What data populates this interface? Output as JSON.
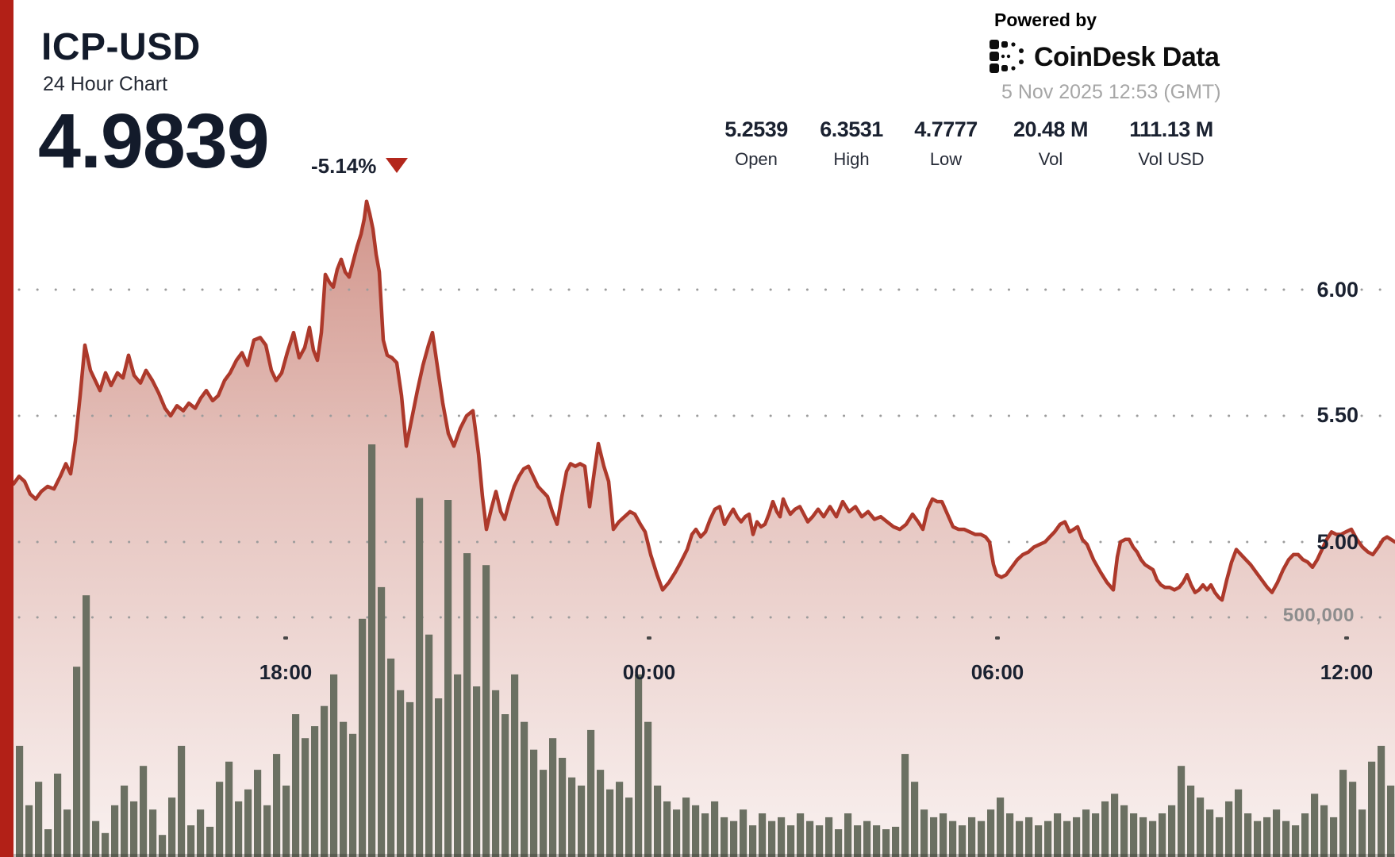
{
  "header": {
    "symbol": "ICP-USD",
    "subtitle": "24 Hour Chart",
    "price": "4.9839",
    "change_pct": "-5.14%",
    "change_direction": "down",
    "stats": [
      {
        "value": "5.2539",
        "label": "Open"
      },
      {
        "value": "6.3531",
        "label": "High"
      },
      {
        "value": "4.7777",
        "label": "Low"
      },
      {
        "value": "20.48 M",
        "label": "Vol"
      },
      {
        "value": "111.13 M",
        "label": "Vol USD"
      }
    ],
    "powered_by": "Powered by",
    "brand": "CoinDesk Data",
    "timestamp": "5 Nov 2025 12:53 (GMT)"
  },
  "colors": {
    "accent_red": "#b22017",
    "line_red": "#ad392b",
    "fill_red": "#a7321f",
    "volume_gray": "#6b7062",
    "grid_gray": "#9c9c9c",
    "tick_dark": "#474747",
    "text_dark": "#1a2130",
    "text_gray": "#a6a6a6",
    "vol_label_gray": "#8d8d8d"
  },
  "chart_data": {
    "type": "area",
    "title": "ICP-USD 24 Hour Chart",
    "subtitle_note": "price line with volume bars",
    "open": 5.2539,
    "high": 6.3531,
    "low": 4.7777,
    "close": 4.9839,
    "volume": "20.48 M",
    "volume_usd": "111.13 M",
    "price_axis": {
      "ticks": [
        "6.00",
        "5.50",
        "5.00"
      ],
      "tick_values": [
        6.0,
        5.5,
        5.0
      ],
      "ylim": [
        4.7,
        6.45
      ],
      "grid": "dotted"
    },
    "volume_axis": {
      "ticks": [
        "500,000"
      ],
      "tick_values": [
        500000
      ]
    },
    "time_axis": {
      "ticks": [
        "18:00",
        "00:00",
        "06:00",
        "12:00"
      ]
    },
    "price_series": [
      [
        17,
        5.23
      ],
      [
        24,
        5.26
      ],
      [
        31,
        5.24
      ],
      [
        38,
        5.19
      ],
      [
        45,
        5.17
      ],
      [
        52,
        5.2
      ],
      [
        60,
        5.22
      ],
      [
        68,
        5.21
      ],
      [
        76,
        5.26
      ],
      [
        83,
        5.31
      ],
      [
        89,
        5.27
      ],
      [
        95,
        5.4
      ],
      [
        101,
        5.58
      ],
      [
        107,
        5.78
      ],
      [
        114,
        5.68
      ],
      [
        120,
        5.64
      ],
      [
        126,
        5.6
      ],
      [
        133,
        5.67
      ],
      [
        140,
        5.62
      ],
      [
        148,
        5.67
      ],
      [
        155,
        5.65
      ],
      [
        162,
        5.74
      ],
      [
        169,
        5.66
      ],
      [
        177,
        5.63
      ],
      [
        184,
        5.68
      ],
      [
        192,
        5.64
      ],
      [
        200,
        5.59
      ],
      [
        208,
        5.53
      ],
      [
        215,
        5.5
      ],
      [
        223,
        5.54
      ],
      [
        231,
        5.52
      ],
      [
        238,
        5.55
      ],
      [
        246,
        5.53
      ],
      [
        253,
        5.57
      ],
      [
        260,
        5.6
      ],
      [
        268,
        5.56
      ],
      [
        275,
        5.58
      ],
      [
        283,
        5.64
      ],
      [
        290,
        5.67
      ],
      [
        298,
        5.72
      ],
      [
        305,
        5.75
      ],
      [
        312,
        5.7
      ],
      [
        320,
        5.8
      ],
      [
        328,
        5.81
      ],
      [
        335,
        5.78
      ],
      [
        342,
        5.68
      ],
      [
        348,
        5.64
      ],
      [
        355,
        5.67
      ],
      [
        362,
        5.75
      ],
      [
        370,
        5.83
      ],
      [
        377,
        5.73
      ],
      [
        384,
        5.77
      ],
      [
        390,
        5.85
      ],
      [
        395,
        5.76
      ],
      [
        400,
        5.72
      ],
      [
        405,
        5.83
      ],
      [
        410,
        6.06
      ],
      [
        415,
        6.03
      ],
      [
        420,
        6.01
      ],
      [
        425,
        6.08
      ],
      [
        430,
        6.12
      ],
      [
        435,
        6.07
      ],
      [
        440,
        6.05
      ],
      [
        445,
        6.11
      ],
      [
        450,
        6.17
      ],
      [
        455,
        6.22
      ],
      [
        459,
        6.28
      ],
      [
        462,
        6.35
      ],
      [
        466,
        6.3
      ],
      [
        470,
        6.24
      ],
      [
        474,
        6.14
      ],
      [
        478,
        6.07
      ],
      [
        483,
        5.8
      ],
      [
        488,
        5.74
      ],
      [
        494,
        5.73
      ],
      [
        500,
        5.71
      ],
      [
        506,
        5.58
      ],
      [
        512,
        5.38
      ],
      [
        519,
        5.49
      ],
      [
        526,
        5.6
      ],
      [
        533,
        5.7
      ],
      [
        540,
        5.78
      ],
      [
        545,
        5.83
      ],
      [
        551,
        5.7
      ],
      [
        558,
        5.55
      ],
      [
        565,
        5.43
      ],
      [
        572,
        5.38
      ],
      [
        580,
        5.45
      ],
      [
        588,
        5.5
      ],
      [
        596,
        5.52
      ],
      [
        603,
        5.35
      ],
      [
        608,
        5.18
      ],
      [
        613,
        5.05
      ],
      [
        619,
        5.13
      ],
      [
        625,
        5.2
      ],
      [
        631,
        5.12
      ],
      [
        636,
        5.09
      ],
      [
        642,
        5.16
      ],
      [
        648,
        5.22
      ],
      [
        654,
        5.26
      ],
      [
        660,
        5.29
      ],
      [
        666,
        5.3
      ],
      [
        672,
        5.26
      ],
      [
        678,
        5.22
      ],
      [
        684,
        5.2
      ],
      [
        690,
        5.18
      ],
      [
        696,
        5.12
      ],
      [
        702,
        5.07
      ],
      [
        708,
        5.18
      ],
      [
        714,
        5.28
      ],
      [
        719,
        5.31
      ],
      [
        725,
        5.3
      ],
      [
        731,
        5.31
      ],
      [
        737,
        5.3
      ],
      [
        743,
        5.14
      ],
      [
        749,
        5.28
      ],
      [
        754,
        5.39
      ],
      [
        761,
        5.3
      ],
      [
        767,
        5.24
      ],
      [
        773,
        5.05
      ],
      [
        780,
        5.08
      ],
      [
        787,
        5.1
      ],
      [
        794,
        5.12
      ],
      [
        800,
        5.11
      ],
      [
        807,
        5.07
      ],
      [
        813,
        5.04
      ],
      [
        820,
        4.95
      ],
      [
        828,
        4.87
      ],
      [
        835,
        4.81
      ],
      [
        843,
        4.84
      ],
      [
        851,
        4.88
      ],
      [
        858,
        4.92
      ],
      [
        866,
        4.97
      ],
      [
        872,
        5.03
      ],
      [
        877,
        5.05
      ],
      [
        883,
        5.02
      ],
      [
        889,
        5.04
      ],
      [
        895,
        5.09
      ],
      [
        901,
        5.13
      ],
      [
        907,
        5.14
      ],
      [
        913,
        5.07
      ],
      [
        918,
        5.1
      ],
      [
        924,
        5.13
      ],
      [
        929,
        5.1
      ],
      [
        934,
        5.08
      ],
      [
        939,
        5.1
      ],
      [
        944,
        5.11
      ],
      [
        949,
        5.03
      ],
      [
        954,
        5.08
      ],
      [
        959,
        5.06
      ],
      [
        964,
        5.07
      ],
      [
        969,
        5.11
      ],
      [
        974,
        5.16
      ],
      [
        979,
        5.12
      ],
      [
        983,
        5.1
      ],
      [
        987,
        5.17
      ],
      [
        991,
        5.14
      ],
      [
        996,
        5.11
      ],
      [
        1002,
        5.13
      ],
      [
        1008,
        5.14
      ],
      [
        1013,
        5.11
      ],
      [
        1018,
        5.08
      ],
      [
        1024,
        5.1
      ],
      [
        1031,
        5.13
      ],
      [
        1038,
        5.1
      ],
      [
        1046,
        5.14
      ],
      [
        1054,
        5.1
      ],
      [
        1062,
        5.16
      ],
      [
        1070,
        5.12
      ],
      [
        1078,
        5.14
      ],
      [
        1086,
        5.1
      ],
      [
        1094,
        5.12
      ],
      [
        1102,
        5.09
      ],
      [
        1110,
        5.1
      ],
      [
        1118,
        5.08
      ],
      [
        1126,
        5.06
      ],
      [
        1134,
        5.05
      ],
      [
        1142,
        5.07
      ],
      [
        1150,
        5.11
      ],
      [
        1157,
        5.08
      ],
      [
        1163,
        5.05
      ],
      [
        1169,
        5.13
      ],
      [
        1175,
        5.17
      ],
      [
        1181,
        5.16
      ],
      [
        1187,
        5.16
      ],
      [
        1194,
        5.11
      ],
      [
        1201,
        5.06
      ],
      [
        1208,
        5.05
      ],
      [
        1215,
        5.05
      ],
      [
        1222,
        5.04
      ],
      [
        1229,
        5.03
      ],
      [
        1236,
        5.03
      ],
      [
        1242,
        5.02
      ],
      [
        1247,
        5.0
      ],
      [
        1252,
        4.91
      ],
      [
        1256,
        4.87
      ],
      [
        1262,
        4.86
      ],
      [
        1268,
        4.87
      ],
      [
        1275,
        4.9
      ],
      [
        1282,
        4.93
      ],
      [
        1289,
        4.95
      ],
      [
        1296,
        4.96
      ],
      [
        1303,
        4.98
      ],
      [
        1310,
        4.99
      ],
      [
        1317,
        5.0
      ],
      [
        1323,
        5.02
      ],
      [
        1329,
        5.04
      ],
      [
        1336,
        5.07
      ],
      [
        1342,
        5.08
      ],
      [
        1348,
        5.04
      ],
      [
        1353,
        5.05
      ],
      [
        1358,
        5.06
      ],
      [
        1364,
        5.01
      ],
      [
        1370,
        4.99
      ],
      [
        1378,
        4.93
      ],
      [
        1387,
        4.88
      ],
      [
        1395,
        4.84
      ],
      [
        1403,
        4.81
      ],
      [
        1408,
        4.94
      ],
      [
        1412,
        5.0
      ],
      [
        1418,
        5.01
      ],
      [
        1423,
        5.01
      ],
      [
        1428,
        4.98
      ],
      [
        1433,
        4.96
      ],
      [
        1438,
        4.93
      ],
      [
        1443,
        4.91
      ],
      [
        1448,
        4.9
      ],
      [
        1453,
        4.89
      ],
      [
        1458,
        4.85
      ],
      [
        1463,
        4.83
      ],
      [
        1468,
        4.82
      ],
      [
        1474,
        4.82
      ],
      [
        1480,
        4.81
      ],
      [
        1486,
        4.82
      ],
      [
        1491,
        4.84
      ],
      [
        1496,
        4.87
      ],
      [
        1501,
        4.83
      ],
      [
        1506,
        4.8
      ],
      [
        1511,
        4.81
      ],
      [
        1516,
        4.83
      ],
      [
        1521,
        4.81
      ],
      [
        1526,
        4.83
      ],
      [
        1531,
        4.8
      ],
      [
        1536,
        4.78
      ],
      [
        1540,
        4.77
      ],
      [
        1546,
        4.85
      ],
      [
        1552,
        4.92
      ],
      [
        1558,
        4.97
      ],
      [
        1564,
        4.95
      ],
      [
        1570,
        4.93
      ],
      [
        1576,
        4.91
      ],
      [
        1583,
        4.88
      ],
      [
        1590,
        4.85
      ],
      [
        1597,
        4.82
      ],
      [
        1603,
        4.8
      ],
      [
        1610,
        4.84
      ],
      [
        1617,
        4.89
      ],
      [
        1624,
        4.93
      ],
      [
        1630,
        4.95
      ],
      [
        1636,
        4.95
      ],
      [
        1642,
        4.93
      ],
      [
        1648,
        4.92
      ],
      [
        1654,
        4.9
      ],
      [
        1660,
        4.93
      ],
      [
        1666,
        4.97
      ],
      [
        1672,
        5.01
      ],
      [
        1678,
        5.04
      ],
      [
        1684,
        5.03
      ],
      [
        1690,
        5.03
      ],
      [
        1696,
        5.04
      ],
      [
        1703,
        5.05
      ],
      [
        1710,
        5.01
      ],
      [
        1717,
        4.98
      ],
      [
        1724,
        4.96
      ],
      [
        1730,
        4.95
      ],
      [
        1737,
        4.98
      ],
      [
        1743,
        5.01
      ],
      [
        1748,
        5.02
      ],
      [
        1753,
        5.01
      ],
      [
        1758,
        5.0
      ]
    ],
    "volume_series": [
      232000,
      108000,
      157000,
      58000,
      174000,
      99000,
      397000,
      546000,
      75000,
      50000,
      108000,
      149000,
      116000,
      190000,
      99000,
      46000,
      124000,
      232000,
      66000,
      99000,
      63000,
      157000,
      199000,
      116000,
      141000,
      182000,
      108000,
      215000,
      149000,
      298000,
      248000,
      273000,
      315000,
      381000,
      282000,
      257000,
      497000,
      861000,
      563000,
      414000,
      348000,
      323000,
      749000,
      464000,
      331000,
      745000,
      381000,
      634000,
      356000,
      609000,
      348000,
      298000,
      381000,
      282000,
      224000,
      182000,
      248000,
      207000,
      166000,
      149000,
      265000,
      182000,
      141000,
      157000,
      124000,
      381000,
      282000,
      149000,
      116000,
      99000,
      124000,
      108000,
      91000,
      116000,
      83000,
      75000,
      99000,
      66000,
      91000,
      75000,
      83000,
      66000,
      91000,
      75000,
      66000,
      83000,
      58000,
      91000,
      66000,
      75000,
      66000,
      58000,
      63000,
      215000,
      157000,
      99000,
      83000,
      91000,
      75000,
      66000,
      83000,
      75000,
      99000,
      124000,
      91000,
      75000,
      83000,
      66000,
      75000,
      91000,
      75000,
      83000,
      99000,
      91000,
      116000,
      132000,
      108000,
      91000,
      83000,
      75000,
      91000,
      108000,
      190000,
      149000,
      124000,
      99000,
      83000,
      116000,
      141000,
      91000,
      75000,
      83000,
      99000,
      75000,
      66000,
      91000,
      132000,
      108000,
      83000,
      182000,
      157000,
      99000,
      199000,
      232000,
      149000
    ]
  }
}
